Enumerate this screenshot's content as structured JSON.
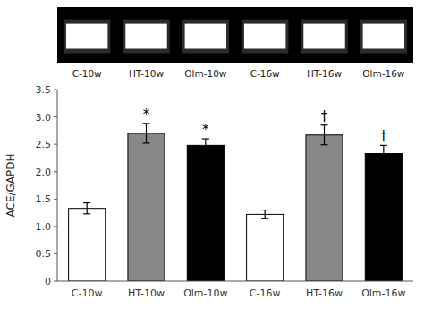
{
  "chart_data": {
    "type": "bar",
    "ylabel": "ACE/GAPDH",
    "categories": [
      "C-10w",
      "HT-10w",
      "Olm-10w",
      "C-16w",
      "HT-16w",
      "Olm-16w"
    ],
    "values": [
      1.33,
      2.7,
      2.48,
      1.22,
      2.67,
      2.33
    ],
    "errors": [
      0.1,
      0.18,
      0.12,
      0.08,
      0.18,
      0.15
    ],
    "colors": [
      "white",
      "#888888",
      "black",
      "white",
      "#888888",
      "black"
    ],
    "annotations": [
      null,
      "*",
      "*",
      null,
      "†",
      "†"
    ],
    "gel_labels": [
      "C-10w",
      "HT-10w",
      "Olm-10w",
      "C-16w",
      "HT-16w",
      "Olm-16w"
    ],
    "ylim": [
      0,
      3.5
    ],
    "yticks": [
      0,
      0.5,
      {
        "value": 1.0,
        "label": "1.0"
      },
      1.5,
      {
        "value": 2.0,
        "label": "2.0"
      },
      2.5,
      {
        "value": 3.0,
        "label": "3.0"
      },
      3.5
    ],
    "grid": false
  }
}
